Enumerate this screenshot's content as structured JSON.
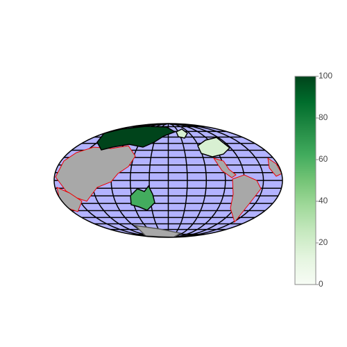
{
  "chart_data": {
    "type": "choropleth",
    "projection": "mollweide",
    "values": [
      100,
      62,
      18,
      18
    ],
    "colorscale": [
      [
        0,
        "#f7fcf5"
      ],
      [
        0.125,
        "#e5f5e0"
      ],
      [
        0.25,
        "#c7e9c0"
      ],
      [
        0.375,
        "#a1d99b"
      ],
      [
        0.5,
        "#74c476"
      ],
      [
        0.625,
        "#41ab5d"
      ],
      [
        0.75,
        "#238b45"
      ],
      [
        0.875,
        "#006d2c"
      ],
      [
        1,
        "#00441b"
      ]
    ],
    "zlim": [
      0,
      100
    ],
    "colorbar_ticks": [
      0,
      20,
      40,
      60,
      80,
      100
    ],
    "ocean_color": "#b3b3ff",
    "land_color": "#a8a8a8",
    "lonaxis": {
      "dtick": 30
    },
    "lataxis": {
      "dtick": 10
    }
  }
}
